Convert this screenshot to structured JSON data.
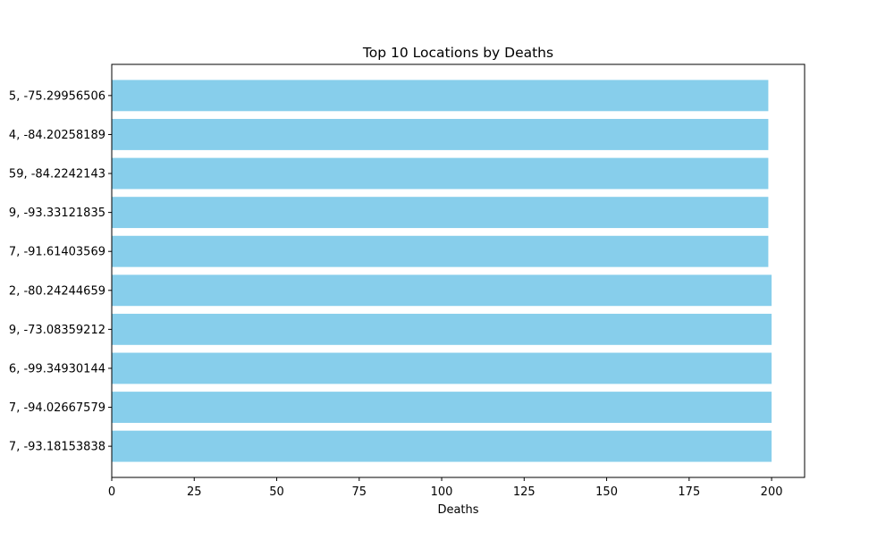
{
  "chart_data": {
    "type": "bar",
    "orientation": "horizontal",
    "title": "Top 10 Locations by Deaths",
    "xlabel": "Deaths",
    "ylabel": "",
    "xlim": [
      0,
      210
    ],
    "x_ticks": [
      0,
      25,
      50,
      75,
      100,
      125,
      150,
      175,
      200
    ],
    "categories": [
      "5, -75.29956506",
      "4, -84.20258189",
      "59, -84.2242143",
      "9, -93.33121835",
      "7, -91.61403569",
      "2, -80.24244659",
      "9, -73.08359212",
      "6, -99.34930144",
      "7, -94.02667579",
      "7, -93.18153838"
    ],
    "values": [
      199,
      199,
      199,
      199,
      199,
      200,
      200,
      200,
      200,
      200
    ],
    "bar_color": "#87CEEB",
    "grid": false,
    "legend": "none"
  }
}
